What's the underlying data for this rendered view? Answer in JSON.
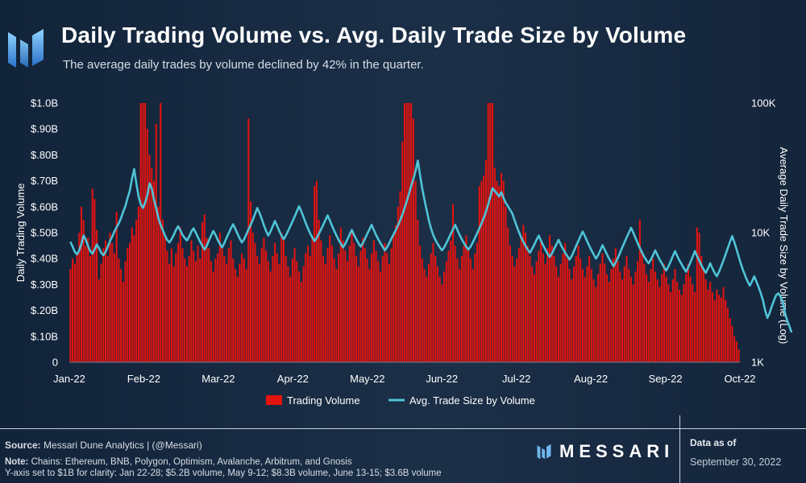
{
  "header": {
    "title": "Daily Trading Volume vs. Avg. Daily Trade Size by Volume",
    "subtitle": "The average daily trades by volume declined by 42% in the quarter."
  },
  "footer": {
    "source_label": "Source:",
    "source_text": "Messari Dune Analytics | (@Messari)",
    "note_label": "Note:",
    "note_line1": "Chains: Ethereum, BNB, Polygon, Optimism, Avalanche, Arbitrum, and Gnosis",
    "note_line2": "Y-axis set to $1B for clarity: Jan 22-28; $5.2B volume, May 9-12; $8.3B volume, June 13-15; $3.6B volume",
    "brand": "MESSARI",
    "as_of_label": "Data as of",
    "as_of_date": "September 30, 2022"
  },
  "colors": {
    "bar": "#e3130f",
    "line": "#4fc3d6",
    "text": "#ffffff",
    "grid": "none"
  },
  "chart_data": {
    "type": "bar",
    "title": "Daily Trading Volume vs. Avg. Daily Trade Size by Volume",
    "xlabel": "",
    "ylabel": "Daily Trading Volume",
    "y2label": "Average Daily Trade Size by Volume (Log)",
    "x_start": "2022-01-01",
    "x_end": "2022-09-30",
    "xtick_labels": [
      "Jan-22",
      "Feb-22",
      "Mar-22",
      "Apr-22",
      "May-22",
      "Jun-22",
      "Jul-22",
      "Aug-22",
      "Sep-22",
      "Oct-22"
    ],
    "ylim": [
      0,
      1.0
    ],
    "ytick_labels": [
      "0",
      "$.10B",
      "$.20B",
      "$.30B",
      "$.40B",
      "$.50B",
      "$.60B",
      "$.70B",
      "$.80B",
      "$.90B",
      "$1.0B"
    ],
    "y2_scale": "log",
    "y2lim": [
      1000,
      100000
    ],
    "y2tick_labels": [
      "1K",
      "10K",
      "100K"
    ],
    "grid": false,
    "legend_position": "bottom-center",
    "series": [
      {
        "name": "Trading Volume",
        "axis": "left",
        "type": "bar",
        "unit": "$B",
        "values": [
          0.36,
          0.4,
          0.38,
          0.42,
          0.5,
          0.6,
          0.55,
          0.45,
          0.48,
          0.41,
          0.67,
          0.63,
          0.51,
          0.32,
          0.38,
          0.44,
          0.47,
          0.41,
          0.5,
          0.46,
          0.42,
          0.58,
          0.4,
          0.36,
          0.31,
          0.39,
          0.44,
          0.46,
          0.52,
          0.49,
          0.55,
          0.6,
          1.0,
          1.0,
          1.0,
          0.9,
          0.8,
          0.75,
          0.7,
          0.92,
          0.6,
          1.0,
          0.55,
          0.48,
          0.43,
          0.38,
          0.44,
          0.37,
          0.42,
          0.46,
          0.52,
          0.44,
          0.4,
          0.37,
          0.41,
          0.47,
          0.43,
          0.39,
          0.45,
          0.4,
          0.54,
          0.57,
          0.48,
          0.44,
          0.39,
          0.35,
          0.4,
          0.42,
          0.5,
          0.45,
          0.41,
          0.38,
          0.44,
          0.47,
          0.4,
          0.36,
          0.33,
          0.38,
          0.42,
          0.4,
          0.36,
          0.94,
          0.62,
          0.5,
          0.46,
          0.41,
          0.38,
          0.44,
          0.48,
          0.43,
          0.39,
          0.35,
          0.41,
          0.46,
          0.42,
          0.38,
          0.5,
          0.47,
          0.41,
          0.37,
          0.33,
          0.4,
          0.44,
          0.39,
          0.35,
          0.31,
          0.37,
          0.42,
          0.45,
          0.41,
          0.48,
          0.68,
          0.7,
          0.55,
          0.47,
          0.41,
          0.38,
          0.44,
          0.49,
          0.45,
          0.4,
          0.36,
          0.42,
          0.52,
          0.47,
          0.43,
          0.39,
          0.45,
          0.5,
          0.46,
          0.41,
          0.37,
          0.43,
          0.48,
          0.44,
          0.4,
          0.36,
          0.42,
          0.47,
          0.43,
          0.39,
          0.35,
          0.41,
          0.46,
          0.42,
          0.38,
          0.44,
          0.49,
          0.53,
          0.6,
          0.66,
          0.85,
          1.0,
          1.0,
          1.0,
          1.0,
          0.94,
          0.7,
          0.55,
          0.45,
          0.4,
          0.36,
          0.33,
          0.38,
          0.42,
          0.46,
          0.41,
          0.37,
          0.33,
          0.3,
          0.35,
          0.39,
          0.43,
          0.47,
          0.61,
          0.45,
          0.4,
          0.36,
          0.41,
          0.45,
          0.49,
          0.44,
          0.4,
          0.36,
          0.42,
          0.46,
          0.68,
          0.7,
          0.72,
          0.78,
          1.0,
          1.0,
          1.0,
          0.75,
          0.7,
          0.68,
          0.73,
          0.7,
          0.6,
          0.52,
          0.45,
          0.41,
          0.37,
          0.4,
          0.44,
          0.48,
          0.53,
          0.5,
          0.45,
          0.41,
          0.37,
          0.34,
          0.39,
          0.43,
          0.47,
          0.42,
          0.38,
          0.44,
          0.49,
          0.45,
          0.41,
          0.37,
          0.33,
          0.38,
          0.42,
          0.46,
          0.4,
          0.36,
          0.32,
          0.37,
          0.41,
          0.45,
          0.4,
          0.36,
          0.33,
          0.37,
          0.41,
          0.36,
          0.32,
          0.29,
          0.34,
          0.38,
          0.42,
          0.38,
          0.34,
          0.31,
          0.36,
          0.4,
          0.44,
          0.39,
          0.35,
          0.32,
          0.37,
          0.41,
          0.36,
          0.33,
          0.3,
          0.35,
          0.39,
          0.55,
          0.43,
          0.38,
          0.34,
          0.31,
          0.36,
          0.4,
          0.35,
          0.32,
          0.29,
          0.34,
          0.38,
          0.33,
          0.3,
          0.27,
          0.32,
          0.36,
          0.31,
          0.28,
          0.26,
          0.3,
          0.34,
          0.38,
          0.33,
          0.3,
          0.27,
          0.52,
          0.5,
          0.41,
          0.36,
          0.32,
          0.28,
          0.31,
          0.27,
          0.24,
          0.28,
          0.26,
          0.25,
          0.29,
          0.24,
          0.21,
          0.17,
          0.14,
          0.1,
          0.08,
          0.05
        ]
      },
      {
        "name": "Avg. Trade Size by Volume",
        "axis": "right",
        "type": "line",
        "unit": "$",
        "values": [
          8500,
          7800,
          7100,
          6800,
          7300,
          8200,
          9500,
          8800,
          7900,
          7200,
          6900,
          7400,
          8100,
          7600,
          7000,
          6700,
          7100,
          7800,
          8600,
          9300,
          10200,
          11000,
          11800,
          12900,
          14500,
          16000,
          18500,
          21000,
          26000,
          31000,
          24000,
          19000,
          16500,
          15500,
          17000,
          19500,
          24000,
          22000,
          18000,
          15500,
          13000,
          11500,
          10500,
          9500,
          8800,
          8400,
          8900,
          9600,
          10500,
          11200,
          10400,
          9600,
          9100,
          8700,
          9300,
          10200,
          10800,
          10000,
          9200,
          8500,
          7900,
          7400,
          7900,
          8700,
          9500,
          10300,
          9600,
          8800,
          8200,
          7700,
          8300,
          9100,
          9900,
          10800,
          11600,
          10700,
          9800,
          9000,
          8400,
          8900,
          9700,
          10600,
          11500,
          12600,
          14000,
          15500,
          14200,
          12800,
          11400,
          10300,
          9500,
          10200,
          11200,
          12300,
          11300,
          10300,
          9500,
          8900,
          9500,
          10300,
          11200,
          12200,
          13300,
          14600,
          16000,
          14600,
          13200,
          11900,
          10800,
          9900,
          9200,
          8600,
          9100,
          9800,
          10600,
          11500,
          12500,
          13600,
          12400,
          11300,
          10300,
          9500,
          8800,
          8200,
          7700,
          8200,
          8900,
          9700,
          10500,
          9600,
          8900,
          8300,
          7800,
          8300,
          9000,
          9800,
          10600,
          11500,
          10500,
          9600,
          8900,
          8300,
          7800,
          7300,
          7700,
          8300,
          9000,
          9700,
          10500,
          11400,
          12500,
          13800,
          15500,
          17500,
          20000,
          23000,
          26000,
          30000,
          36000,
          28000,
          22000,
          18000,
          15000,
          12500,
          10800,
          9600,
          8800,
          8200,
          7700,
          7300,
          7700,
          8300,
          9000,
          9800,
          10600,
          11500,
          10500,
          9600,
          8900,
          8300,
          7800,
          7400,
          7800,
          8400,
          9100,
          9900,
          10800,
          11800,
          13000,
          14500,
          16500,
          19000,
          22000,
          21000,
          20000,
          19000,
          20500,
          18500,
          17000,
          16000,
          15000,
          14000,
          12500,
          11200,
          10100,
          9200,
          8500,
          7900,
          7400,
          7000,
          7500,
          8100,
          8800,
          9500,
          8700,
          8000,
          7400,
          6900,
          6500,
          6900,
          7500,
          8100,
          8800,
          8100,
          7500,
          7000,
          6600,
          6200,
          6600,
          7200,
          7900,
          8600,
          9400,
          10200,
          9400,
          8600,
          7900,
          7300,
          6800,
          6300,
          6700,
          7300,
          8000,
          7400,
          6800,
          6300,
          5900,
          5500,
          5900,
          6400,
          7000,
          7700,
          8400,
          9200,
          10000,
          10900,
          10000,
          9100,
          8300,
          7600,
          7000,
          6500,
          6100,
          5800,
          6200,
          6700,
          7300,
          6700,
          6200,
          5800,
          5400,
          5100,
          5500,
          6000,
          6600,
          7200,
          6600,
          6100,
          5700,
          5300,
          5000,
          5400,
          5900,
          6500,
          7200,
          6600,
          6100,
          5600,
          5200,
          4900,
          5300,
          5800,
          5300,
          4900,
          4600,
          5000,
          5500,
          6100,
          6800,
          7600,
          8500,
          9400,
          8400,
          7400,
          6500,
          5700,
          5100,
          4600,
          4200,
          3900,
          4200,
          4600,
          4200,
          3800,
          3400,
          3000,
          2500,
          2200,
          2400,
          2700,
          3000,
          3300,
          3400,
          3200,
          2900,
          2400,
          2100,
          1900,
          1700
        ]
      }
    ]
  }
}
